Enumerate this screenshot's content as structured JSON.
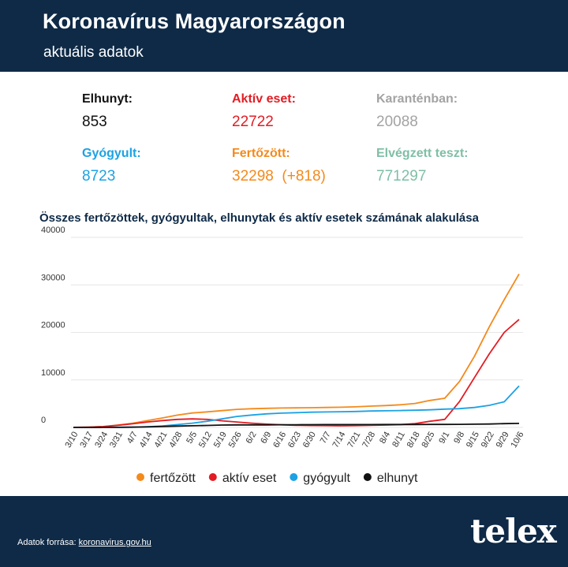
{
  "header": {
    "title": "Koronavírus Magyarországon",
    "subtitle": "aktuális adatok"
  },
  "stats": {
    "elhunyt": {
      "label": "Elhunyt:",
      "value": "853",
      "color": "#111111"
    },
    "aktiv": {
      "label": "Aktív eset:",
      "value": "22722",
      "color": "#e31c23"
    },
    "karanten": {
      "label": "Karanténban:",
      "value": "20088",
      "color": "#a3a3a3"
    },
    "gyogyult": {
      "label": "Gyógyult:",
      "value": "8723",
      "color": "#1ca2e3"
    },
    "fertozott": {
      "label": "Fertőzött:",
      "value": "32298",
      "delta": "(+818)",
      "color": "#f48a1c"
    },
    "teszt": {
      "label": "Elvégzett teszt:",
      "value": "771297",
      "color": "#7fbfa6"
    }
  },
  "chart_data": {
    "type": "line",
    "title": "Összes fertőzöttek, gyógyultak, elhunytak és aktív esetek számának alakulása",
    "ylim": [
      0,
      40000
    ],
    "yticks": [
      "40000",
      "30000",
      "20000",
      "10000",
      "0"
    ],
    "grid": true,
    "legend_position": "bottom",
    "categories": [
      "3/10",
      "3/17",
      "3/24",
      "3/31",
      "4/7",
      "4/14",
      "4/21",
      "4/28",
      "5/5",
      "5/12",
      "5/19",
      "5/26",
      "6/2",
      "6/9",
      "6/16",
      "6/23",
      "6/30",
      "7/7",
      "7/14",
      "7/21",
      "7/28",
      "8/4",
      "8/11",
      "8/18",
      "8/25",
      "9/1",
      "9/8",
      "9/15",
      "9/22",
      "9/29",
      "10/6"
    ],
    "series": [
      {
        "name": "fertőzött",
        "color": "#f48a1c",
        "values": [
          12,
          73,
          187,
          492,
          895,
          1458,
          1984,
          2583,
          3035,
          3263,
          3535,
          3793,
          3931,
          4014,
          4077,
          4115,
          4157,
          4205,
          4247,
          4339,
          4484,
          4597,
          4763,
          5046,
          5670,
          6139,
          9715,
          14982,
          21200,
          26900,
          32298
        ]
      },
      {
        "name": "aktív eset",
        "color": "#e31c23",
        "values": [
          12,
          70,
          170,
          440,
          760,
          1150,
          1450,
          1700,
          1800,
          1700,
          1400,
          1150,
          900,
          700,
          550,
          450,
          400,
          380,
          330,
          380,
          430,
          500,
          580,
          800,
          1300,
          1700,
          5500,
          10500,
          15500,
          20000,
          22722
        ]
      },
      {
        "name": "gyógyult",
        "color": "#1ca2e3",
        "values": [
          0,
          2,
          10,
          30,
          70,
          150,
          300,
          600,
          900,
          1300,
          1800,
          2300,
          2600,
          2850,
          3000,
          3100,
          3200,
          3250,
          3300,
          3350,
          3450,
          3500,
          3560,
          3620,
          3700,
          3850,
          3950,
          4200,
          4650,
          5400,
          8723
        ]
      },
      {
        "name": "elhunyt",
        "color": "#111111",
        "values": [
          0,
          1,
          9,
          20,
          57,
          109,
          199,
          280,
          351,
          413,
          500,
          527,
          534,
          539,
          568,
          572,
          585,
          595,
          595,
          598,
          602,
          606,
          613,
          614,
          625,
          632,
          646,
          677,
          717,
          797,
          853
        ]
      }
    ]
  },
  "footer": {
    "source_label": "Adatok forrása:",
    "source_link": "koronavirus.gov.hu",
    "logo": "telex"
  }
}
